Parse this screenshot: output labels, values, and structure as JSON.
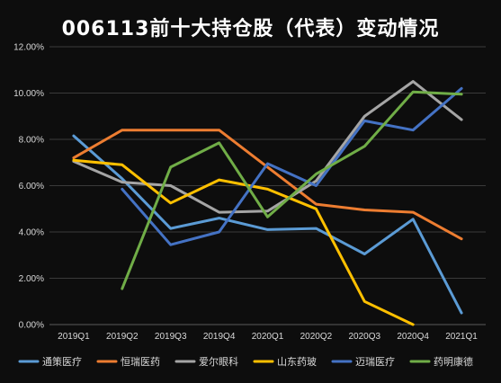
{
  "chart_data": {
    "type": "line",
    "title": "006113前十大持仓股（代表）变动情况",
    "categories": [
      "2019Q1",
      "2019Q2",
      "2019Q3",
      "2019Q4",
      "2020Q1",
      "2020Q2",
      "2020Q3",
      "2020Q4",
      "2021Q1"
    ],
    "ylim": [
      0,
      12
    ],
    "yticks": [
      "0.00%",
      "2.00%",
      "4.00%",
      "6.00%",
      "8.00%",
      "10.00%",
      "12.00%"
    ],
    "ytick_values": [
      0,
      2,
      4,
      6,
      8,
      10,
      12
    ],
    "grid": true,
    "legend_position": "bottom",
    "series": [
      {
        "name": "通策医疗",
        "color": "#5b9bd5",
        "values": [
          8.15,
          6.3,
          4.15,
          4.6,
          4.1,
          4.15,
          3.05,
          4.55,
          0.5
        ]
      },
      {
        "name": "恒瑞医药",
        "color": "#ed7d31",
        "values": [
          7.2,
          8.4,
          8.4,
          8.4,
          6.8,
          5.2,
          4.95,
          4.85,
          3.7
        ]
      },
      {
        "name": "爱尔眼科",
        "color": "#a5a5a5",
        "values": [
          7.05,
          6.15,
          6.0,
          4.85,
          4.9,
          6.2,
          9.0,
          10.5,
          8.85
        ]
      },
      {
        "name": "山东药玻",
        "color": "#ffc000",
        "values": [
          7.1,
          6.9,
          5.25,
          6.25,
          5.85,
          5.0,
          1.0,
          0.0,
          null
        ]
      },
      {
        "name": "迈瑞医疗",
        "color": "#4472c4",
        "values": [
          null,
          5.85,
          3.45,
          4.0,
          6.95,
          6.0,
          8.8,
          8.4,
          10.2
        ]
      },
      {
        "name": "药明康德",
        "color": "#70ad47",
        "values": [
          null,
          1.55,
          6.8,
          7.85,
          4.65,
          6.5,
          7.7,
          10.05,
          9.95
        ]
      }
    ]
  }
}
